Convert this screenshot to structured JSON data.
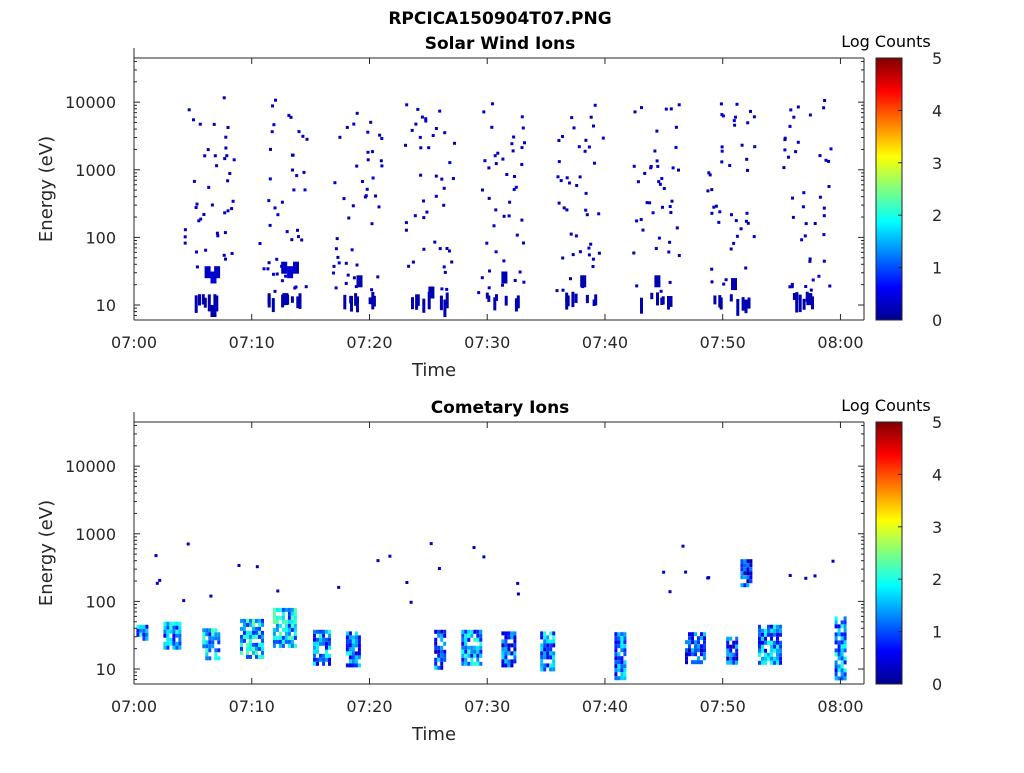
{
  "figure_title": "RPCICA150904T07.PNG",
  "chart_data": [
    {
      "type": "heatmap",
      "title": "Solar Wind Ions",
      "xlabel": "Time",
      "ylabel": "Energy (eV)",
      "colorbar_label": "Log Counts",
      "xlim": [
        "07:00",
        "08:02"
      ],
      "ylim": [
        6,
        45000
      ],
      "y_scale": "log",
      "x_ticks": [
        "07:00",
        "07:10",
        "07:20",
        "07:30",
        "07:40",
        "07:50",
        "08:00"
      ],
      "y_ticks": [
        10,
        100,
        1000,
        10000
      ],
      "y_tick_labels": [
        "10",
        "100",
        "1000",
        "10000"
      ],
      "colorbar_range": [
        0,
        5
      ],
      "colorbar_ticks": [
        "0",
        "1",
        "2",
        "3",
        "4",
        "5"
      ],
      "scan_centers_min": [
        6.3,
        12.5,
        18.9,
        25.0,
        31.2,
        37.9,
        44.2,
        50.7,
        57.1
      ],
      "cells": [
        {
          "t": 6.0,
          "e": 30,
          "v": 0.3
        },
        {
          "t": 6.5,
          "e": 25,
          "v": 0.4
        },
        {
          "t": 6.8,
          "e": 30,
          "v": 0.3
        },
        {
          "t": 6.5,
          "e": 8,
          "v": 0.2
        },
        {
          "t": 12.5,
          "e": 35,
          "v": 0.3
        },
        {
          "t": 13.0,
          "e": 30,
          "v": 0.4
        },
        {
          "t": 13.5,
          "e": 35,
          "v": 0.3
        },
        {
          "t": 12.6,
          "e": 12,
          "v": 0.2
        },
        {
          "t": 18.9,
          "e": 22,
          "v": 0.2
        },
        {
          "t": 25.0,
          "e": 15,
          "v": 0.2
        },
        {
          "t": 31.2,
          "e": 25,
          "v": 0.2
        },
        {
          "t": 37.9,
          "e": 22,
          "v": 0.2
        },
        {
          "t": 44.2,
          "e": 22,
          "v": 0.2
        },
        {
          "t": 50.7,
          "e": 20,
          "v": 0.2
        },
        {
          "t": 57.1,
          "e": 12,
          "v": 0.2
        }
      ]
    },
    {
      "type": "heatmap",
      "title": "Cometary Ions",
      "xlabel": "Time",
      "ylabel": "Energy (eV)",
      "colorbar_label": "Log Counts",
      "xlim": [
        "07:00",
        "08:02"
      ],
      "ylim": [
        6,
        45000
      ],
      "y_scale": "log",
      "x_ticks": [
        "07:00",
        "07:10",
        "07:20",
        "07:30",
        "07:40",
        "07:50",
        "08:00"
      ],
      "y_ticks": [
        10,
        100,
        1000,
        10000
      ],
      "y_tick_labels": [
        "10",
        "100",
        "1000",
        "10000"
      ],
      "colorbar_range": [
        0,
        5
      ],
      "colorbar_ticks": [
        "0",
        "1",
        "2",
        "3",
        "4",
        "5"
      ],
      "blocks": [
        {
          "t0": 0.2,
          "t1": 1.0,
          "e0": 28,
          "e1": 45,
          "v": 1.4
        },
        {
          "t0": 2.5,
          "t1": 3.8,
          "e0": 22,
          "e1": 50,
          "v": 1.3
        },
        {
          "t0": 5.8,
          "t1": 7.1,
          "e0": 14,
          "e1": 40,
          "v": 1.5
        },
        {
          "t0": 9.0,
          "t1": 10.8,
          "e0": 16,
          "e1": 55,
          "v": 1.6
        },
        {
          "t0": 11.8,
          "t1": 13.7,
          "e0": 22,
          "e1": 80,
          "v": 1.6
        },
        {
          "t0": 15.2,
          "t1": 16.5,
          "e0": 12,
          "e1": 38,
          "v": 1.2
        },
        {
          "t0": 18.0,
          "t1": 19.2,
          "e0": 12,
          "e1": 36,
          "v": 1.2
        },
        {
          "t0": 25.5,
          "t1": 26.5,
          "e0": 10,
          "e1": 38,
          "v": 1.0
        },
        {
          "t0": 27.8,
          "t1": 29.5,
          "e0": 12,
          "e1": 38,
          "v": 1.4
        },
        {
          "t0": 31.2,
          "t1": 32.4,
          "e0": 12,
          "e1": 36,
          "v": 1.0
        },
        {
          "t0": 34.5,
          "t1": 35.6,
          "e0": 10,
          "e1": 36,
          "v": 1.3
        },
        {
          "t0": 40.8,
          "t1": 41.8,
          "e0": 7,
          "e1": 35,
          "v": 1.1
        },
        {
          "t0": 46.8,
          "t1": 48.5,
          "e0": 12,
          "e1": 35,
          "v": 0.9
        },
        {
          "t0": 50.3,
          "t1": 51.2,
          "e0": 12,
          "e1": 30,
          "v": 0.9
        },
        {
          "t0": 51.5,
          "t1": 52.4,
          "e0": 180,
          "e1": 420,
          "v": 0.8
        },
        {
          "t0": 53.0,
          "t1": 55.0,
          "e0": 12,
          "e1": 45,
          "v": 1.2
        },
        {
          "t0": 59.5,
          "t1": 60.3,
          "e0": 7,
          "e1": 60,
          "v": 1.4
        }
      ]
    }
  ]
}
